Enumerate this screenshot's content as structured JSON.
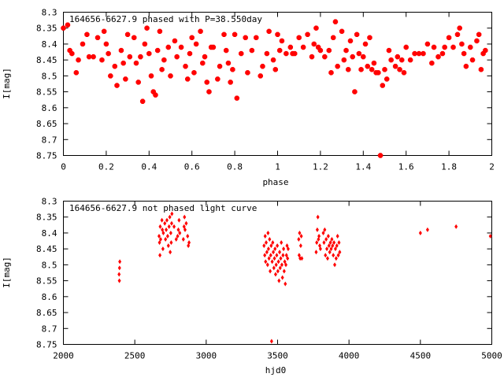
{
  "chart_data": [
    {
      "type": "scatter",
      "title": "164656-6627.9 phased with P=38.550day",
      "xlabel": "phase",
      "ylabel": "I[mag]",
      "xlim": [
        0,
        2
      ],
      "ylim": [
        8.3,
        8.75
      ],
      "y_inverted": true,
      "grid": false,
      "marker_color": "#ff0000",
      "marker_shape": "octagon",
      "xticks": [
        0,
        0.2,
        0.4,
        0.6,
        0.8,
        1,
        1.2,
        1.4,
        1.6,
        1.8,
        2
      ],
      "xtick_labels": [
        "0",
        "0.2",
        "0.4",
        "0.6",
        "0.8",
        "1",
        "1.2",
        "1.4",
        "1.6",
        "1.8",
        "2"
      ],
      "yticks": [
        8.3,
        8.35,
        8.4,
        8.45,
        8.5,
        8.55,
        8.6,
        8.65,
        8.7,
        8.75
      ],
      "ytick_labels": [
        "8.3",
        "8.35",
        "8.4",
        "8.45",
        "8.5",
        "8.55",
        "8.6",
        "8.65",
        "8.7",
        "8.75"
      ],
      "points": [
        [
          0.0,
          8.35
        ],
        [
          0.02,
          8.34
        ],
        [
          0.03,
          8.42
        ],
        [
          0.04,
          8.43
        ],
        [
          0.06,
          8.49
        ],
        [
          0.07,
          8.45
        ],
        [
          0.09,
          8.4
        ],
        [
          0.11,
          8.37
        ],
        [
          0.12,
          8.44
        ],
        [
          0.14,
          8.44
        ],
        [
          0.16,
          8.38
        ],
        [
          0.18,
          8.45
        ],
        [
          0.19,
          8.36
        ],
        [
          0.2,
          8.4
        ],
        [
          0.21,
          8.43
        ],
        [
          0.22,
          8.5
        ],
        [
          0.24,
          8.47
        ],
        [
          0.25,
          8.53
        ],
        [
          0.27,
          8.42
        ],
        [
          0.28,
          8.46
        ],
        [
          0.29,
          8.51
        ],
        [
          0.3,
          8.37
        ],
        [
          0.31,
          8.44
        ],
        [
          0.33,
          8.38
        ],
        [
          0.34,
          8.46
        ],
        [
          0.35,
          8.52
        ],
        [
          0.36,
          8.44
        ],
        [
          0.37,
          8.58
        ],
        [
          0.38,
          8.4
        ],
        [
          0.39,
          8.35
        ],
        [
          0.4,
          8.43
        ],
        [
          0.41,
          8.5
        ],
        [
          0.42,
          8.55
        ],
        [
          0.43,
          8.56
        ],
        [
          0.44,
          8.42
        ],
        [
          0.45,
          8.36
        ],
        [
          0.46,
          8.48
        ],
        [
          0.47,
          8.45
        ],
        [
          0.49,
          8.41
        ],
        [
          0.5,
          8.5
        ],
        [
          0.52,
          8.39
        ],
        [
          0.53,
          8.44
        ],
        [
          0.55,
          8.41
        ],
        [
          0.57,
          8.47
        ],
        [
          0.58,
          8.51
        ],
        [
          0.59,
          8.43
        ],
        [
          0.6,
          8.38
        ],
        [
          0.61,
          8.49
        ],
        [
          0.62,
          8.4
        ],
        [
          0.64,
          8.36
        ],
        [
          0.65,
          8.46
        ],
        [
          0.66,
          8.44
        ],
        [
          0.67,
          8.52
        ],
        [
          0.68,
          8.55
        ],
        [
          0.69,
          8.41
        ],
        [
          0.7,
          8.41
        ],
        [
          0.72,
          8.51
        ],
        [
          0.73,
          8.47
        ],
        [
          0.75,
          8.37
        ],
        [
          0.76,
          8.42
        ],
        [
          0.77,
          8.46
        ],
        [
          0.78,
          8.52
        ],
        [
          0.79,
          8.48
        ],
        [
          0.8,
          8.37
        ],
        [
          0.81,
          8.57
        ],
        [
          0.83,
          8.43
        ],
        [
          0.85,
          8.38
        ],
        [
          0.86,
          8.49
        ],
        [
          0.88,
          8.42
        ],
        [
          0.9,
          8.38
        ],
        [
          0.92,
          8.5
        ],
        [
          0.93,
          8.47
        ],
        [
          0.95,
          8.43
        ],
        [
          0.96,
          8.36
        ],
        [
          0.98,
          8.45
        ],
        [
          0.99,
          8.48
        ],
        [
          1.0,
          8.37
        ],
        [
          1.01,
          8.42
        ],
        [
          1.02,
          8.39
        ],
        [
          1.04,
          8.43
        ],
        [
          1.06,
          8.41
        ],
        [
          1.07,
          8.43
        ],
        [
          1.08,
          8.43
        ],
        [
          1.1,
          8.38
        ],
        [
          1.12,
          8.41
        ],
        [
          1.14,
          8.37
        ],
        [
          1.16,
          8.44
        ],
        [
          1.17,
          8.4
        ],
        [
          1.18,
          8.35
        ],
        [
          1.19,
          8.41
        ],
        [
          1.2,
          8.42
        ],
        [
          1.22,
          8.44
        ],
        [
          1.24,
          8.42
        ],
        [
          1.25,
          8.49
        ],
        [
          1.26,
          8.38
        ],
        [
          1.27,
          8.33
        ],
        [
          1.28,
          8.47
        ],
        [
          1.3,
          8.36
        ],
        [
          1.31,
          8.45
        ],
        [
          1.32,
          8.42
        ],
        [
          1.33,
          8.48
        ],
        [
          1.34,
          8.39
        ],
        [
          1.35,
          8.44
        ],
        [
          1.36,
          8.55
        ],
        [
          1.37,
          8.37
        ],
        [
          1.38,
          8.43
        ],
        [
          1.39,
          8.48
        ],
        [
          1.4,
          8.44
        ],
        [
          1.41,
          8.4
        ],
        [
          1.42,
          8.47
        ],
        [
          1.43,
          8.38
        ],
        [
          1.44,
          8.48
        ],
        [
          1.45,
          8.46
        ],
        [
          1.46,
          8.49
        ],
        [
          1.47,
          8.49
        ],
        [
          1.48,
          8.75
        ],
        [
          1.49,
          8.53
        ],
        [
          1.5,
          8.48
        ],
        [
          1.51,
          8.51
        ],
        [
          1.52,
          8.42
        ],
        [
          1.53,
          8.45
        ],
        [
          1.55,
          8.47
        ],
        [
          1.56,
          8.44
        ],
        [
          1.57,
          8.48
        ],
        [
          1.58,
          8.45
        ],
        [
          1.59,
          8.49
        ],
        [
          1.6,
          8.41
        ],
        [
          1.62,
          8.45
        ],
        [
          1.64,
          8.43
        ],
        [
          1.66,
          8.43
        ],
        [
          1.68,
          8.43
        ],
        [
          1.7,
          8.4
        ],
        [
          1.72,
          8.46
        ],
        [
          1.73,
          8.41
        ],
        [
          1.75,
          8.44
        ],
        [
          1.77,
          8.43
        ],
        [
          1.78,
          8.41
        ],
        [
          1.8,
          8.38
        ],
        [
          1.82,
          8.41
        ],
        [
          1.84,
          8.37
        ],
        [
          1.85,
          8.35
        ],
        [
          1.86,
          8.4
        ],
        [
          1.87,
          8.43
        ],
        [
          1.88,
          8.47
        ],
        [
          1.9,
          8.41
        ],
        [
          1.91,
          8.45
        ],
        [
          1.93,
          8.39
        ],
        [
          1.94,
          8.37
        ],
        [
          1.95,
          8.48
        ],
        [
          1.96,
          8.43
        ],
        [
          1.97,
          8.42
        ]
      ]
    },
    {
      "type": "scatter",
      "title": "164656-6627.9 not phased light curve",
      "xlabel": "hjd0",
      "ylabel": "I[mag]",
      "xlim": [
        2000,
        5000
      ],
      "ylim": [
        8.3,
        8.75
      ],
      "y_inverted": true,
      "grid": false,
      "marker_color": "#ff0000",
      "marker_shape": "diamond",
      "xticks": [
        2000,
        2500,
        3000,
        3500,
        4000,
        4500,
        5000
      ],
      "xtick_labels": [
        "2000",
        "2500",
        "3000",
        "3500",
        "4000",
        "4500",
        "5000"
      ],
      "yticks": [
        8.3,
        8.35,
        8.4,
        8.45,
        8.5,
        8.55,
        8.6,
        8.65,
        8.7,
        8.75
      ],
      "ytick_labels": [
        "8.3",
        "8.35",
        "8.4",
        "8.45",
        "8.5",
        "8.55",
        "8.6",
        "8.65",
        "8.7",
        "8.75"
      ],
      "points": [
        [
          2390,
          8.53
        ],
        [
          2392,
          8.55
        ],
        [
          2393,
          8.51
        ],
        [
          2395,
          8.49
        ],
        [
          2670,
          8.41
        ],
        [
          2673,
          8.43
        ],
        [
          2676,
          8.47
        ],
        [
          2678,
          8.38
        ],
        [
          2681,
          8.42
        ],
        [
          2690,
          8.36
        ],
        [
          2693,
          8.39
        ],
        [
          2697,
          8.45
        ],
        [
          2700,
          8.4
        ],
        [
          2710,
          8.37
        ],
        [
          2715,
          8.42
        ],
        [
          2720,
          8.39
        ],
        [
          2725,
          8.36
        ],
        [
          2730,
          8.41
        ],
        [
          2735,
          8.44
        ],
        [
          2740,
          8.38
        ],
        [
          2745,
          8.35
        ],
        [
          2748,
          8.46
        ],
        [
          2752,
          8.4
        ],
        [
          2755,
          8.43
        ],
        [
          2758,
          8.37
        ],
        [
          2760,
          8.34
        ],
        [
          2775,
          8.38
        ],
        [
          2790,
          8.42
        ],
        [
          2800,
          8.41
        ],
        [
          2805,
          8.39
        ],
        [
          2810,
          8.36
        ],
        [
          2815,
          8.4
        ],
        [
          2840,
          8.42
        ],
        [
          2845,
          8.38
        ],
        [
          2848,
          8.35
        ],
        [
          2852,
          8.39
        ],
        [
          2860,
          8.37
        ],
        [
          2870,
          8.41
        ],
        [
          2875,
          8.44
        ],
        [
          2880,
          8.43
        ],
        [
          3405,
          8.44
        ],
        [
          3410,
          8.47
        ],
        [
          3413,
          8.41
        ],
        [
          3416,
          8.49
        ],
        [
          3420,
          8.43
        ],
        [
          3425,
          8.46
        ],
        [
          3430,
          8.5
        ],
        [
          3433,
          8.4
        ],
        [
          3436,
          8.45
        ],
        [
          3440,
          8.48
        ],
        [
          3444,
          8.42
        ],
        [
          3448,
          8.52
        ],
        [
          3452,
          8.47
        ],
        [
          3455,
          8.44
        ],
        [
          3458,
          8.74
        ],
        [
          3462,
          8.49
        ],
        [
          3466,
          8.43
        ],
        [
          3470,
          8.46
        ],
        [
          3474,
          8.51
        ],
        [
          3478,
          8.48
        ],
        [
          3482,
          8.45
        ],
        [
          3486,
          8.53
        ],
        [
          3490,
          8.5
        ],
        [
          3494,
          8.47
        ],
        [
          3498,
          8.44
        ],
        [
          3502,
          8.52
        ],
        [
          3506,
          8.49
        ],
        [
          3510,
          8.55
        ],
        [
          3514,
          8.46
        ],
        [
          3518,
          8.51
        ],
        [
          3522,
          8.48
        ],
        [
          3526,
          8.43
        ],
        [
          3530,
          8.5
        ],
        [
          3534,
          8.54
        ],
        [
          3538,
          8.47
        ],
        [
          3542,
          8.45
        ],
        [
          3546,
          8.52
        ],
        [
          3550,
          8.49
        ],
        [
          3554,
          8.56
        ],
        [
          3558,
          8.5
        ],
        [
          3562,
          8.47
        ],
        [
          3566,
          8.44
        ],
        [
          3570,
          8.48
        ],
        [
          3574,
          8.45
        ],
        [
          3648,
          8.42
        ],
        [
          3651,
          8.47
        ],
        [
          3654,
          8.4
        ],
        [
          3658,
          8.48
        ],
        [
          3662,
          8.44
        ],
        [
          3666,
          8.41
        ],
        [
          3670,
          8.48
        ],
        [
          3770,
          8.46
        ],
        [
          3774,
          8.43
        ],
        [
          3778,
          8.39
        ],
        [
          3782,
          8.35
        ],
        [
          3786,
          8.42
        ],
        [
          3790,
          8.41
        ],
        [
          3795,
          8.44
        ],
        [
          3800,
          8.45
        ],
        [
          3820,
          8.4
        ],
        [
          3825,
          8.43
        ],
        [
          3830,
          8.39
        ],
        [
          3835,
          8.47
        ],
        [
          3840,
          8.42
        ],
        [
          3845,
          8.45
        ],
        [
          3850,
          8.48
        ],
        [
          3855,
          8.41
        ],
        [
          3860,
          8.44
        ],
        [
          3865,
          8.46
        ],
        [
          3870,
          8.43
        ],
        [
          3875,
          8.45
        ],
        [
          3880,
          8.42
        ],
        [
          3885,
          8.44
        ],
        [
          3890,
          8.47
        ],
        [
          3895,
          8.43
        ],
        [
          3900,
          8.5
        ],
        [
          3905,
          8.45
        ],
        [
          3910,
          8.48
        ],
        [
          3915,
          8.44
        ],
        [
          3920,
          8.41
        ],
        [
          3925,
          8.47
        ],
        [
          3930,
          8.43
        ],
        [
          3935,
          8.46
        ],
        [
          4500,
          8.4
        ],
        [
          4550,
          8.39
        ],
        [
          4750,
          8.38
        ],
        [
          4990,
          8.41
        ]
      ]
    }
  ]
}
